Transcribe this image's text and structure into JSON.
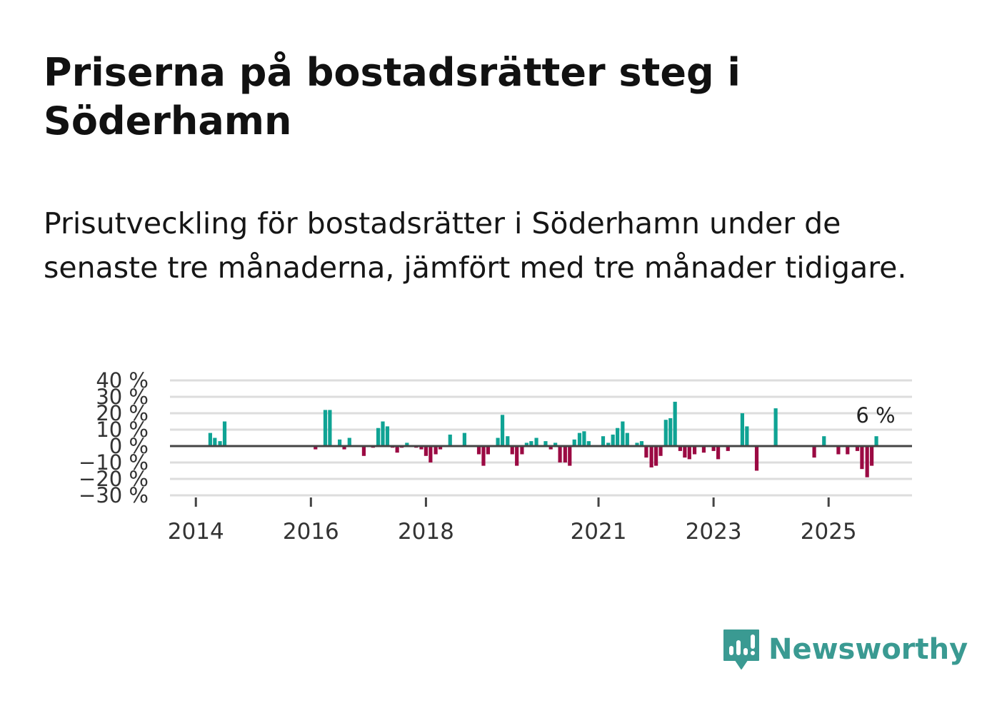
{
  "header": {
    "title": "Priserna på bostadsrätter steg i Söderhamn",
    "subtitle": "Prisutveckling för bostadsrätter i Söderhamn under de senaste tre månaderna, jämfört med tre månader tidigare."
  },
  "brand": {
    "name": "Newsworthy",
    "color": "#3a9a92",
    "icon": "newsworthy-logo-icon"
  },
  "colors": {
    "positive": "#0fa394",
    "negative": "#9b0a43",
    "grid": "#dddddd",
    "zero": "#444444",
    "text": "#333333"
  },
  "chart_data": {
    "type": "bar",
    "title": "Priserna på bostadsrätter steg i Söderhamn",
    "xlabel": "",
    "ylabel": "",
    "ylim": [
      -30,
      40
    ],
    "ytick_step": 10,
    "value_suffix": " %",
    "xlim": [
      2013.55,
      2026.45
    ],
    "x_ticks": [
      2014,
      2016,
      2018,
      2021,
      2023,
      2025
    ],
    "x_tick_labels": [
      "2014",
      "2016",
      "2018",
      "2021",
      "2023",
      "2025"
    ],
    "grid": true,
    "annotation": {
      "text": "6 %",
      "x": 2026.25
    },
    "x": [
      2014.25,
      2014.33,
      2014.42,
      2014.5,
      2016.08,
      2016.25,
      2016.33,
      2016.5,
      2016.58,
      2016.67,
      2016.92,
      2017.08,
      2017.17,
      2017.25,
      2017.33,
      2017.42,
      2017.5,
      2017.58,
      2017.67,
      2017.83,
      2017.92,
      2018.0,
      2018.08,
      2018.17,
      2018.25,
      2018.42,
      2018.67,
      2018.92,
      2019.0,
      2019.08,
      2019.25,
      2019.33,
      2019.42,
      2019.5,
      2019.58,
      2019.67,
      2019.75,
      2019.83,
      2019.92,
      2020.0,
      2020.08,
      2020.17,
      2020.25,
      2020.33,
      2020.42,
      2020.5,
      2020.58,
      2020.67,
      2020.75,
      2020.83,
      2020.92,
      2021.08,
      2021.17,
      2021.25,
      2021.33,
      2021.42,
      2021.5,
      2021.67,
      2021.75,
      2021.83,
      2021.92,
      2022.0,
      2022.08,
      2022.17,
      2022.25,
      2022.33,
      2022.42,
      2022.5,
      2022.58,
      2022.67,
      2022.83,
      2023.0,
      2023.08,
      2023.25,
      2023.5,
      2023.58,
      2023.75,
      2024.08,
      2024.75,
      2024.92,
      2025.17,
      2025.33,
      2025.5,
      2025.58,
      2025.67,
      2025.75,
      2025.83
    ],
    "values": [
      8,
      5,
      3,
      15,
      -2,
      22,
      22,
      4,
      -2,
      5,
      -6,
      -1,
      11,
      15,
      12,
      -1,
      -4,
      -1,
      2,
      -1,
      -2,
      -6,
      -10,
      -5,
      -2,
      7,
      8,
      -5,
      -12,
      -5,
      5,
      19,
      6,
      -5,
      -12,
      -5,
      2,
      3,
      5,
      0,
      3,
      -2,
      2,
      -10,
      -10,
      -12,
      4,
      8,
      9,
      3,
      0,
      6,
      2,
      7,
      11,
      15,
      8,
      2,
      3,
      -7,
      -13,
      -12,
      -6,
      16,
      17,
      27,
      -3,
      -7,
      -8,
      -5,
      -4,
      -3,
      -8,
      -3,
      20,
      12,
      -15,
      23,
      -7,
      6,
      -5,
      -5,
      -3,
      -14,
      -19,
      -12,
      6
    ]
  }
}
